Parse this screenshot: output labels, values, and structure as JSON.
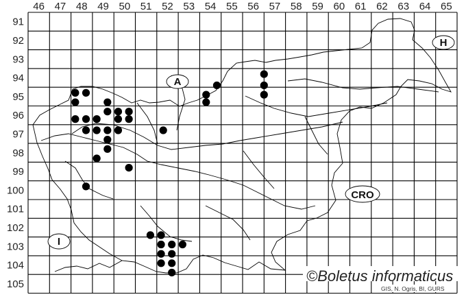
{
  "map": {
    "columns": [
      "46",
      "47",
      "48",
      "49",
      "50",
      "51",
      "52",
      "53",
      "54",
      "55",
      "56",
      "57",
      "58",
      "59",
      "60",
      "61",
      "62",
      "63",
      "64",
      "65"
    ],
    "rows": [
      "91",
      "92",
      "93",
      "94",
      "95",
      "96",
      "97",
      "98",
      "99",
      "100",
      "101",
      "102",
      "103",
      "104",
      "105"
    ],
    "country_labels": {
      "austria": "A",
      "hungary": "H",
      "croatia": "CRO",
      "italy": "I"
    },
    "records": [
      [
        48.2,
        95.3
      ],
      [
        48.7,
        95.3
      ],
      [
        48.2,
        95.8
      ],
      [
        49.7,
        95.8
      ],
      [
        49.7,
        96.3
      ],
      [
        50.2,
        96.3
      ],
      [
        50.7,
        96.3
      ],
      [
        48.2,
        96.7
      ],
      [
        48.7,
        96.7
      ],
      [
        49.2,
        96.7
      ],
      [
        50.2,
        96.7
      ],
      [
        50.7,
        96.7
      ],
      [
        48.7,
        97.3
      ],
      [
        49.2,
        97.3
      ],
      [
        49.7,
        97.3
      ],
      [
        50.2,
        97.3
      ],
      [
        52.3,
        97.3
      ],
      [
        49.7,
        97.8
      ],
      [
        49.7,
        98.3
      ],
      [
        49.2,
        98.8
      ],
      [
        50.7,
        99.3
      ],
      [
        48.7,
        100.3
      ],
      [
        54.3,
        95.4
      ],
      [
        54.3,
        95.8
      ],
      [
        54.8,
        94.9
      ],
      [
        57.0,
        94.3
      ],
      [
        57.0,
        94.9
      ],
      [
        57.0,
        95.4
      ],
      [
        51.7,
        102.9
      ],
      [
        52.2,
        102.9
      ],
      [
        52.2,
        103.4
      ],
      [
        52.7,
        103.4
      ],
      [
        53.2,
        103.4
      ],
      [
        52.2,
        103.9
      ],
      [
        52.7,
        103.9
      ],
      [
        52.2,
        104.4
      ],
      [
        52.7,
        104.4
      ],
      [
        52.7,
        104.9
      ]
    ],
    "dot_color": "#000000",
    "copyright": "©Boletus informaticus",
    "credit": "GIS, N. Ogris, BI, GURS"
  }
}
